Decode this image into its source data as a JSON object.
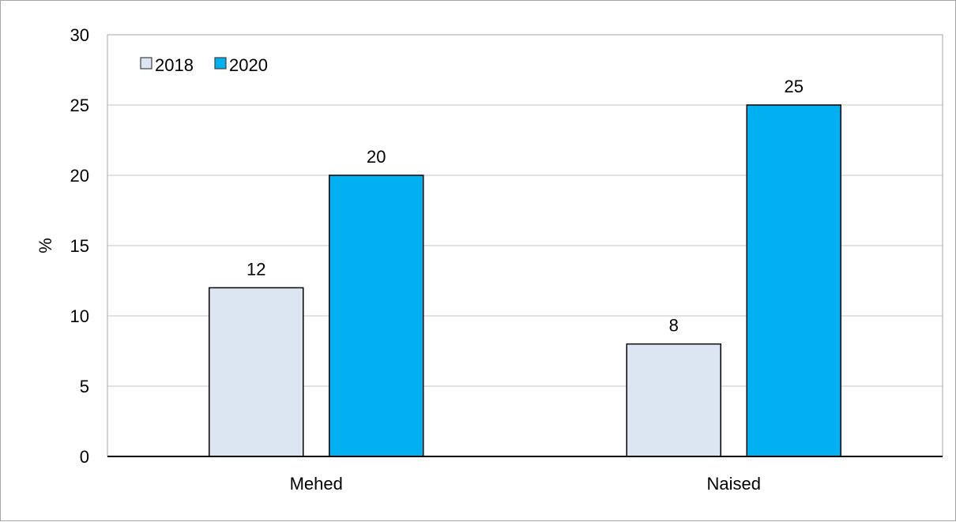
{
  "chart_data": {
    "type": "bar",
    "categories": [
      "Mehed",
      "Naised"
    ],
    "series": [
      {
        "name": "2018",
        "values": [
          12,
          8
        ],
        "color": "#dce6f2"
      },
      {
        "name": "2020",
        "values": [
          20,
          25
        ],
        "color": "#00b0f0"
      }
    ],
    "xlabel": "",
    "ylabel": "%",
    "ylim": [
      0,
      30
    ],
    "yticks": [
      0,
      5,
      10,
      15,
      20,
      25,
      30
    ],
    "grid": true,
    "legend_position": "top-left",
    "data_labels": true
  }
}
